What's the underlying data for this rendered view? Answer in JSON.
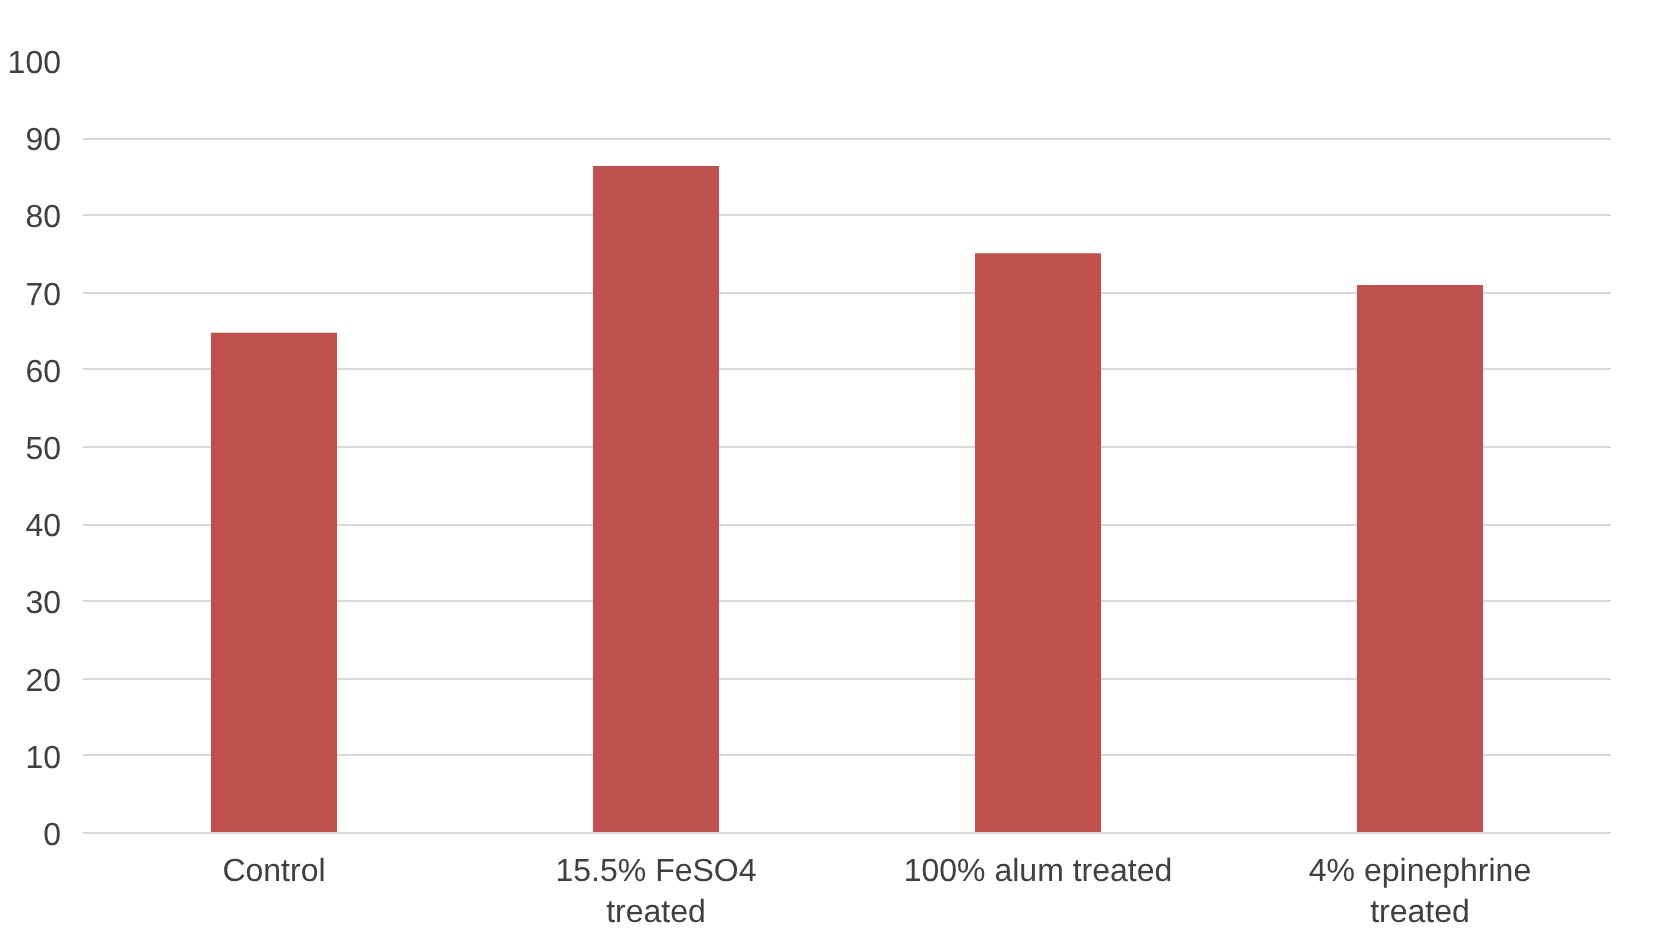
{
  "chart_data": {
    "type": "bar",
    "categories": [
      "Control",
      "15.5% FeSO4 treated",
      "100% alum treated",
      "4% epinephrine treated"
    ],
    "values": [
      64.8,
      86.4,
      75.1,
      71.0
    ],
    "color": "#c0504d",
    "ylim": [
      0,
      100
    ],
    "yticks": [
      0,
      10,
      20,
      30,
      40,
      50,
      60,
      70,
      80,
      90,
      100
    ],
    "grid": "y"
  }
}
